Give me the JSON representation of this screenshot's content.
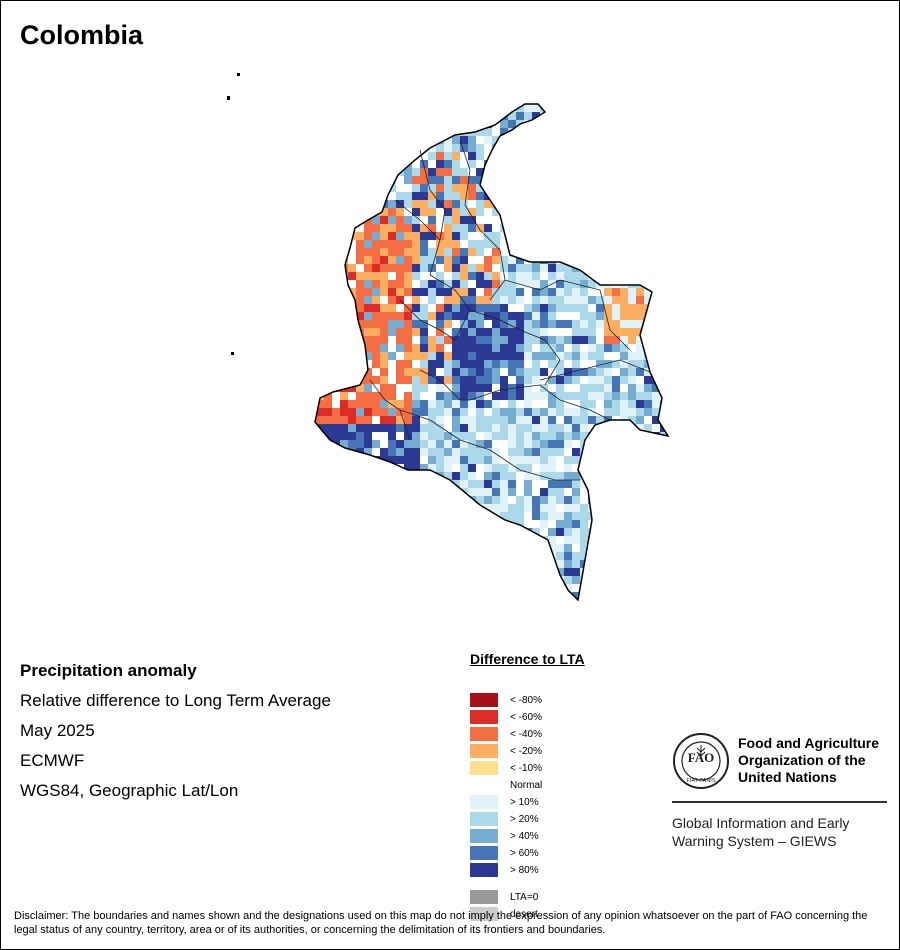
{
  "title": "Colombia",
  "info": {
    "heading": "Precipitation anomaly",
    "lines": [
      "Relative difference to Long Term Average",
      "May 2025",
      "ECMWF",
      "WGS84, Geographic Lat/Lon"
    ]
  },
  "legend": {
    "title": "Difference to LTA",
    "items": [
      {
        "label": "< -80%",
        "color": "#a50f15"
      },
      {
        "label": "< -60%",
        "color": "#de2d26"
      },
      {
        "label": "< -40%",
        "color": "#f46d43"
      },
      {
        "label": "< -20%",
        "color": "#fdae61"
      },
      {
        "label": "< -10%",
        "color": "#fee090"
      },
      {
        "label": "Normal",
        "color": "#ffffff"
      },
      {
        "label": "> 10%",
        "color": "#e0f3f8"
      },
      {
        "label": "> 20%",
        "color": "#abd9e9"
      },
      {
        "label": "> 40%",
        "color": "#74add1"
      },
      {
        "label": "> 60%",
        "color": "#4575b4"
      },
      {
        "label": "> 80%",
        "color": "#2b3994"
      },
      {
        "label": "LTA=0",
        "color": "#999999"
      },
      {
        "label": "desert",
        "color": "#cccccc"
      }
    ]
  },
  "fao": {
    "name_lines": [
      "Food and Agriculture",
      "Organization of the",
      "United Nations"
    ],
    "subtitle_lines": [
      "Global Information and Early",
      "Warning System – GIEWS"
    ],
    "logo_text": "FAO",
    "motto": "FIAT PANIS"
  },
  "disclaimer": "Disclaimer: The boundaries and names shown and the designations used on this map do not imply the expression of any opinion whatsoever on the part of FAO concerning the legal status of any country, territory, area or of its authorities, or concerning the delimitation of its frontiers and boundaries."
}
